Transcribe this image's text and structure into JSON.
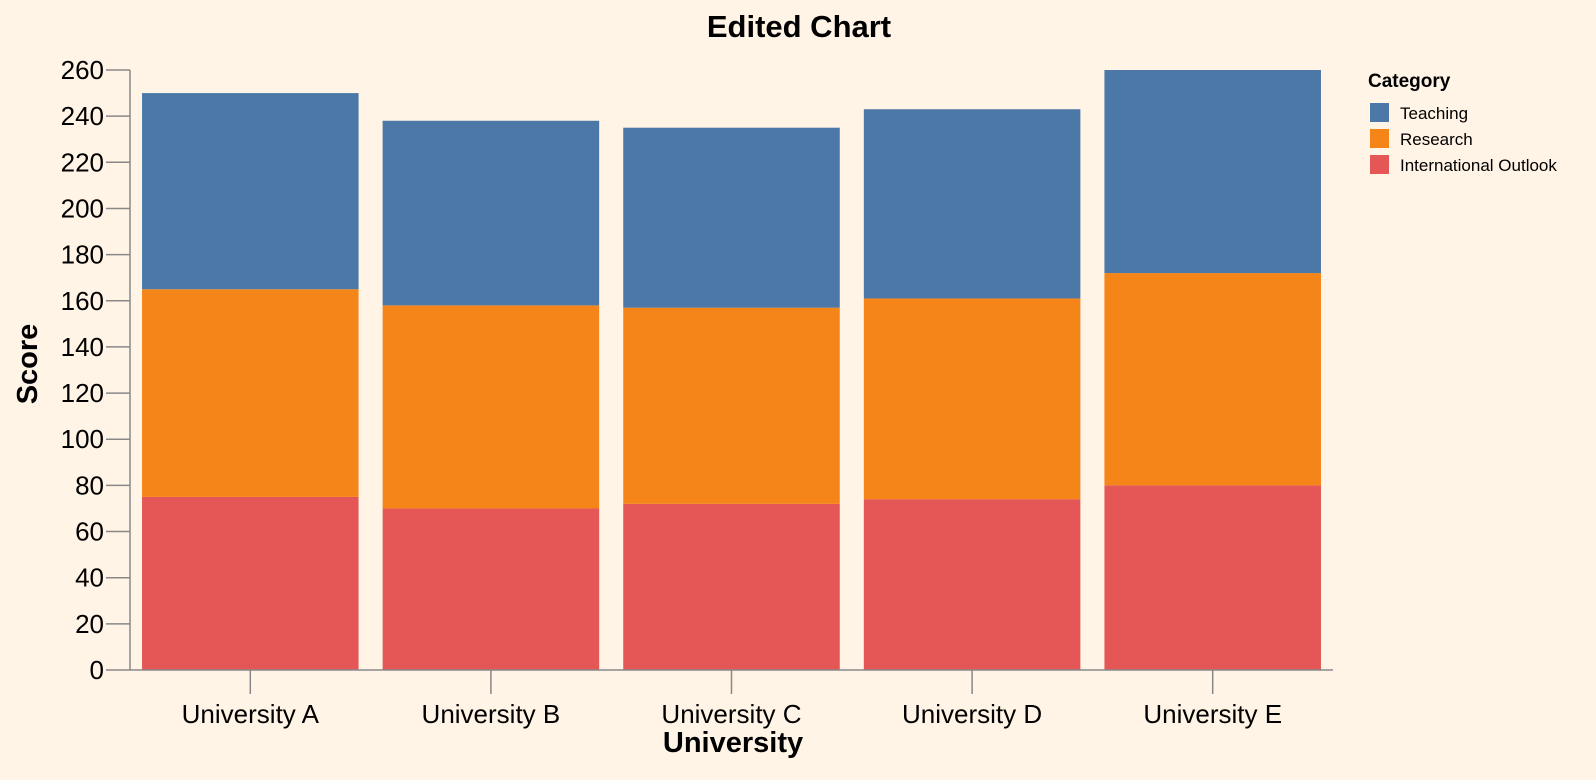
{
  "chart_data": {
    "type": "bar",
    "stacked": true,
    "title": "Edited Chart",
    "xlabel": "University",
    "ylabel": "Score",
    "ylim": [
      0,
      260
    ],
    "yticks": [
      0,
      20,
      40,
      60,
      80,
      100,
      120,
      140,
      160,
      180,
      200,
      220,
      240,
      260
    ],
    "categories": [
      "University A",
      "University B",
      "University C",
      "University D",
      "University E"
    ],
    "series": [
      {
        "name": "International Outlook",
        "color": "#e45756",
        "values": [
          75,
          70,
          72,
          74,
          80
        ]
      },
      {
        "name": "Research",
        "color": "#f58518",
        "values": [
          90,
          88,
          85,
          87,
          92
        ]
      },
      {
        "name": "Teaching",
        "color": "#4c78a8",
        "values": [
          85,
          80,
          78,
          82,
          88
        ]
      }
    ],
    "legend": {
      "title": "Category",
      "placement": "top-right",
      "order": [
        "Teaching",
        "Research",
        "International Outlook"
      ]
    },
    "grid": false
  }
}
